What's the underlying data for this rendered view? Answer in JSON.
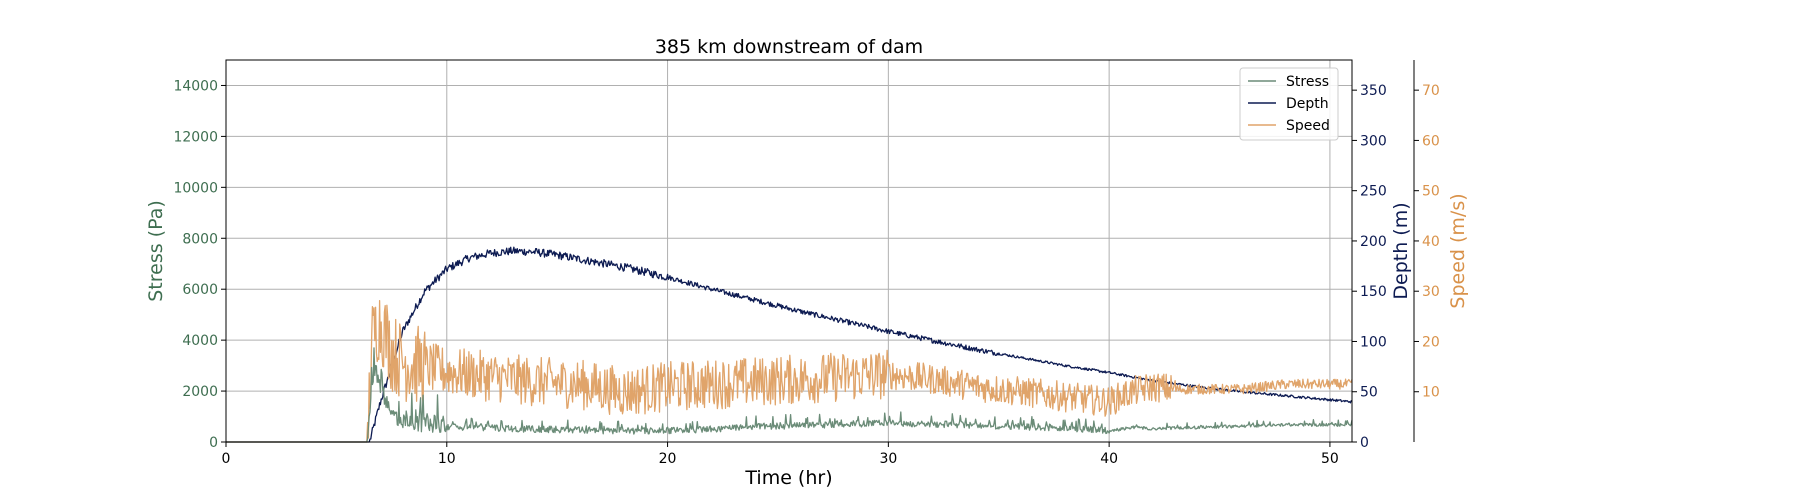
{
  "chart_data": {
    "type": "line",
    "title": "385 km downstream of dam",
    "xlabel": "Time (hr)",
    "xlim": [
      0,
      51
    ],
    "x_ticks": [
      0,
      10,
      20,
      30,
      40,
      50
    ],
    "grid": true,
    "legend_position": "top-right",
    "axes": {
      "stress": {
        "label": "Stress (Pa)",
        "lim": [
          0,
          15000
        ],
        "ticks": [
          0,
          2000,
          4000,
          6000,
          8000,
          10000,
          12000,
          14000
        ],
        "side": "left",
        "color": "#3e6e50"
      },
      "depth": {
        "label": "Depth (m)",
        "lim": [
          0,
          380
        ],
        "ticks": [
          0,
          50,
          100,
          150,
          200,
          250,
          300,
          350
        ],
        "side": "right",
        "color": "#0d1b52"
      },
      "speed": {
        "label": "Speed (m/s)",
        "lim": [
          0,
          76
        ],
        "ticks": [
          10,
          20,
          30,
          40,
          50,
          60,
          70
        ],
        "side": "right-outer",
        "color": "#d9924a"
      }
    },
    "series": [
      {
        "name": "Stress",
        "axis": "stress",
        "color": "#6b8c78",
        "x": [
          0,
          6.4,
          6.5,
          6.7,
          7.0,
          7.5,
          8.0,
          9,
          10,
          12,
          14,
          16,
          18,
          20,
          22,
          24,
          26,
          28,
          30,
          32,
          34,
          36,
          38,
          40,
          41,
          42,
          44,
          46,
          48,
          50,
          51
        ],
        "values": [
          0,
          0,
          1200,
          2800,
          2000,
          900,
          700,
          600,
          550,
          500,
          450,
          420,
          380,
          400,
          450,
          550,
          600,
          650,
          700,
          650,
          600,
          550,
          500,
          400,
          550,
          500,
          550,
          600,
          650,
          650,
          650
        ]
      },
      {
        "name": "Depth",
        "axis": "depth",
        "color": "#0d1b52",
        "x": [
          0,
          6.5,
          7,
          8,
          9,
          10,
          11,
          12,
          13,
          14,
          15,
          16,
          18,
          20,
          22,
          24,
          26,
          28,
          30,
          32,
          34,
          36,
          38,
          40,
          42,
          44,
          46,
          48,
          50,
          51
        ],
        "values": [
          0,
          0,
          40,
          110,
          150,
          172,
          183,
          188,
          190,
          189,
          186,
          182,
          174,
          164,
          152,
          141,
          130,
          120,
          110,
          101,
          92,
          84,
          76,
          69,
          61,
          55,
          50,
          46,
          42,
          40
        ]
      },
      {
        "name": "Speed",
        "axis": "speed",
        "color": "#e0a46a",
        "x": [
          0,
          6.4,
          6.6,
          6.9,
          7.2,
          7.5,
          8,
          9,
          10,
          12,
          14,
          16,
          18,
          20,
          22,
          24,
          26,
          28,
          30,
          32,
          34,
          36,
          38,
          40,
          41,
          42,
          43,
          44,
          46,
          48,
          50,
          51
        ],
        "values": [
          0,
          0,
          20,
          24,
          22,
          18,
          16,
          15,
          14,
          13,
          12,
          11.5,
          10,
          11,
          11.5,
          12,
          12.5,
          13,
          13.5,
          12.5,
          11,
          10,
          9,
          8,
          10,
          11,
          10.5,
          10.5,
          10.5,
          11.5,
          11.5,
          11.5
        ]
      }
    ]
  }
}
